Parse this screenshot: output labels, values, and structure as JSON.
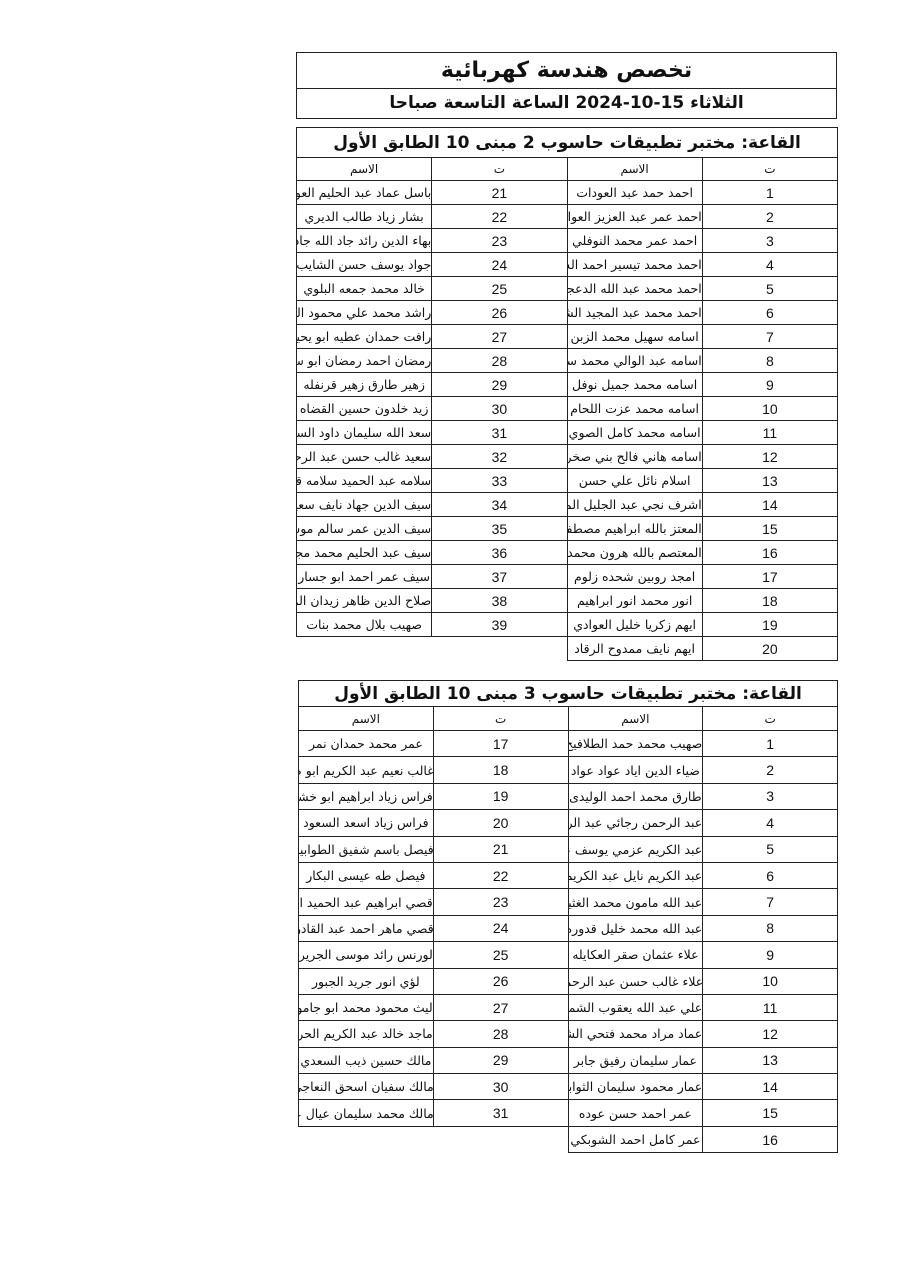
{
  "header": {
    "title": "تخصص هندسة كهربائية",
    "subtitle": "الثلاثاء 15-10-2024 الساعة التاسعة صباحا"
  },
  "tables": [
    {
      "title": "القاعة: مختبر تطبيقات حاسوب 2 مبنى 10 الطابق الأول",
      "col_num": "ت",
      "col_name": "الاسم",
      "right": [
        {
          "n": "1",
          "name": "احمد حمد عبد العودات"
        },
        {
          "n": "2",
          "name": "احمد عمر عبد العزيز العواد"
        },
        {
          "n": "3",
          "name": "احمد عمر محمد النوفلي"
        },
        {
          "n": "4",
          "name": "احمد محمد تيسير احمد الدبسي"
        },
        {
          "n": "5",
          "name": "احمد محمد عبد الله الدعجه"
        },
        {
          "n": "6",
          "name": "احمد محمد عبد المجيد الشبيلات"
        },
        {
          "n": "7",
          "name": "اسامه سهيل محمد الزبن"
        },
        {
          "n": "8",
          "name": "اسامه عبد الوالي محمد سعيد العجلوني"
        },
        {
          "n": "9",
          "name": "اسامه محمد جميل نوفل"
        },
        {
          "n": "10",
          "name": "اسامه محمد عزت اللحام"
        },
        {
          "n": "11",
          "name": "اسامه محمد كامل الصوي"
        },
        {
          "n": "12",
          "name": "اسامه هاني فالح بني صخر"
        },
        {
          "n": "13",
          "name": "اسلام نائل علي حسن"
        },
        {
          "n": "14",
          "name": "اشرف نجي عبد الجليل المناصير"
        },
        {
          "n": "15",
          "name": "المعتز بالله ابراهيم مصطفى الاعمر"
        },
        {
          "n": "16",
          "name": "المعتصم بالله هرون محمد وصوص"
        },
        {
          "n": "17",
          "name": "امجد روبين شحده زلوم"
        },
        {
          "n": "18",
          "name": "انور محمد انور ابراهيم"
        },
        {
          "n": "19",
          "name": "ايهم زكريا خليل العوادي"
        },
        {
          "n": "20",
          "name": "ايهم نايف ممدوح الرقاد"
        }
      ],
      "left": [
        {
          "n": "21",
          "name": "باسل عماد عبد الحليم العوامله"
        },
        {
          "n": "22",
          "name": "بشار زياد طالب الديري"
        },
        {
          "n": "23",
          "name": "بهاء الدين رائد جاد الله جاد الله"
        },
        {
          "n": "24",
          "name": "جواد يوسف حسن الشايب"
        },
        {
          "n": "25",
          "name": "خالد محمد جمعه البلوي"
        },
        {
          "n": "26",
          "name": "راشد محمد علي محمود الحديدي"
        },
        {
          "n": "27",
          "name": "رافت حمدان عطيه ابو يحيى"
        },
        {
          "n": "28",
          "name": "رمضان احمد رمضان ابو سليمه"
        },
        {
          "n": "29",
          "name": "زهير طارق زهير قرنفله"
        },
        {
          "n": "30",
          "name": "زيد خلدون حسين القضاه"
        },
        {
          "n": "31",
          "name": "سعد الله سليمان داود السيد"
        },
        {
          "n": "32",
          "name": "سعيد غالب حسن عبد الرحمن"
        },
        {
          "n": "33",
          "name": "سلامه عبد الحميد سلامه قنديل"
        },
        {
          "n": "34",
          "name": "سيف الدين جهاد نايف سعيدان"
        },
        {
          "n": "35",
          "name": "سيف الدين عمر سالم موسى"
        },
        {
          "n": "36",
          "name": "سيف عبد الحليم محمد مجدلاويه"
        },
        {
          "n": "37",
          "name": "سيف عمر احمد ابو جسار"
        },
        {
          "n": "38",
          "name": "صلاح الدين ظاهر زيدان المصالحه"
        },
        {
          "n": "39",
          "name": "صهيب بلال محمد بنات"
        }
      ]
    },
    {
      "title": "القاعة: مختبر تطبيقات حاسوب 3 مبنى 10 الطابق الأول",
      "col_num": "ت",
      "col_name": "الاسم",
      "right": [
        {
          "n": "1",
          "name": "صهيب محمد حمد الطلافيح"
        },
        {
          "n": "2",
          "name": "ضياء الدين اياد عواد عواد"
        },
        {
          "n": "3",
          "name": "طارق محمد احمد الوليدى"
        },
        {
          "n": "4",
          "name": "عبد الرحمن رجائي عبد الرحمن الزعبي"
        },
        {
          "n": "5",
          "name": "عبد الكريم عزمي يوسف عبد الكريم"
        },
        {
          "n": "6",
          "name": "عبد الكريم نايل عبد الكريم البكار"
        },
        {
          "n": "7",
          "name": "عبد الله مامون محمد الغثيان"
        },
        {
          "n": "8",
          "name": "عبد الله محمد خليل قدوره"
        },
        {
          "n": "9",
          "name": "علاء عثمان صقر العكايله"
        },
        {
          "n": "10",
          "name": "علاء غالب حسن عبد الرحمن"
        },
        {
          "n": "11",
          "name": "علي عبد الله يعقوب الشمايله"
        },
        {
          "n": "12",
          "name": "عماد مراد محمد فتحي الشلبي"
        },
        {
          "n": "13",
          "name": "عمار سليمان رفيق جابر"
        },
        {
          "n": "14",
          "name": "عمار محمود سليمان الثوابيه"
        },
        {
          "n": "15",
          "name": "عمر احمد حسن عوده"
        },
        {
          "n": "16",
          "name": "عمر كامل احمد الشوبكي"
        }
      ],
      "left": [
        {
          "n": "17",
          "name": "عمر محمد حمدان نمر"
        },
        {
          "n": "18",
          "name": "غالب نعيم عبد الكريم ابو صعيليك"
        },
        {
          "n": "19",
          "name": "فراس زياد ابراهيم ابو خشبه"
        },
        {
          "n": "20",
          "name": "فراس زياد اسعد السعود"
        },
        {
          "n": "21",
          "name": "فيصل باسم شفيق الطوابيني"
        },
        {
          "n": "22",
          "name": "فيصل طه عيسى البكار"
        },
        {
          "n": "23",
          "name": "قصي ابراهيم عبد الحميد الرقب"
        },
        {
          "n": "24",
          "name": "قصي ماهر احمد عبد القادر"
        },
        {
          "n": "25",
          "name": "لورنس رائد موسى الجريري"
        },
        {
          "n": "26",
          "name": "لؤي انور جريد الجبور"
        },
        {
          "n": "27",
          "name": "ليث محمود محمد ابو جاموس"
        },
        {
          "n": "28",
          "name": "ماجد خالد عبد الكريم الحر"
        },
        {
          "n": "29",
          "name": "مالك حسين ذيب السعدي"
        },
        {
          "n": "30",
          "name": "مالك سفيان اسحق النعاجي"
        },
        {
          "n": "31",
          "name": "مالك محمد سليمان عيال عواد"
        }
      ]
    }
  ]
}
